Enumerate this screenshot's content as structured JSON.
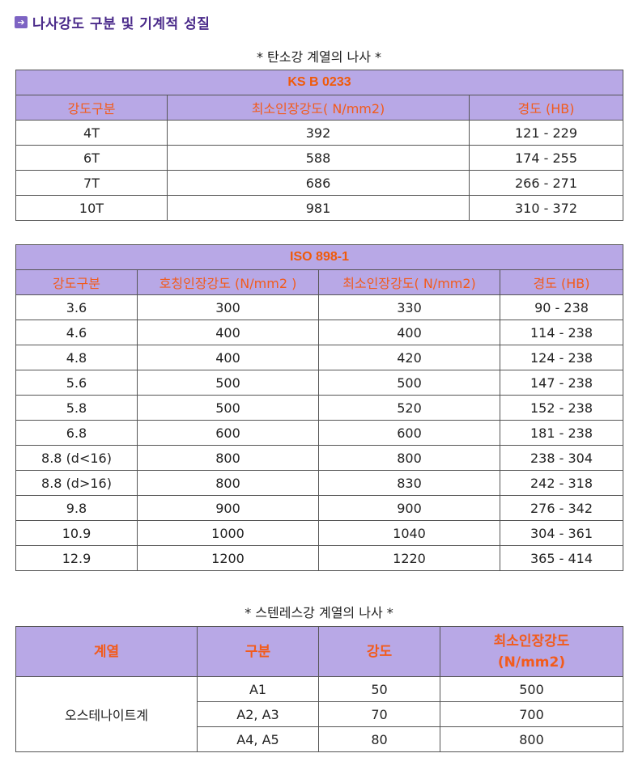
{
  "title": "나사강도 구분 및 기계적 성질",
  "carbon_caption": "* 탄소강 계열의 나사 *",
  "ks_table": {
    "band": "KS B 0233",
    "headers": [
      "강도구분",
      "최소인장강도( N/mm2)",
      "경도 (HB)"
    ],
    "rows": [
      [
        "4T",
        "392",
        "121 - 229"
      ],
      [
        "6T",
        "588",
        "174 - 255"
      ],
      [
        "7T",
        "686",
        "266 - 271"
      ],
      [
        "10T",
        "981",
        "310 - 372"
      ]
    ]
  },
  "iso_table": {
    "band": "ISO 898-1",
    "headers": [
      "강도구분",
      "호칭인장강도 (N/mm2 )",
      "최소인장강도( N/mm2)",
      "경도 (HB)"
    ],
    "rows": [
      [
        "3.6",
        "300",
        "330",
        "90 - 238"
      ],
      [
        "4.6",
        "400",
        "400",
        "114 - 238"
      ],
      [
        "4.8",
        "400",
        "420",
        "124 - 238"
      ],
      [
        "5.6",
        "500",
        "500",
        "147 - 238"
      ],
      [
        "5.8",
        "500",
        "520",
        "152 - 238"
      ],
      [
        "6.8",
        "600",
        "600",
        "181 - 238"
      ],
      [
        "8.8 (d<16)",
        "800",
        "800",
        "238 - 304"
      ],
      [
        "8.8 (d>16)",
        "800",
        "830",
        "242 - 318"
      ],
      [
        "9.8",
        "900",
        "900",
        "276 - 342"
      ],
      [
        "10.9",
        "1000",
        "1040",
        "304 - 361"
      ],
      [
        "12.9",
        "1200",
        "1220",
        "365 - 414"
      ]
    ]
  },
  "stainless_caption": "* 스텐레스강 계열의 나사 *",
  "stainless_table": {
    "headers": [
      "계열",
      "구분",
      "강도",
      "최소인장강도\n(N/mm2)"
    ],
    "header_line1": "최소인장강도",
    "header_line2": "(N/mm2)",
    "group": "오스테나이트계",
    "rows": [
      [
        "A1",
        "50",
        "500"
      ],
      [
        "A2, A3",
        "70",
        "700"
      ],
      [
        "A4, A5",
        "80",
        "800"
      ]
    ]
  },
  "colors": {
    "header_bg": "#b8a8e6",
    "header_text": "#f25b1c",
    "title_text": "#4a2a8a",
    "icon_bg": "#7d63c3"
  },
  "icons": {
    "title_icon": "arrow-right-icon"
  }
}
